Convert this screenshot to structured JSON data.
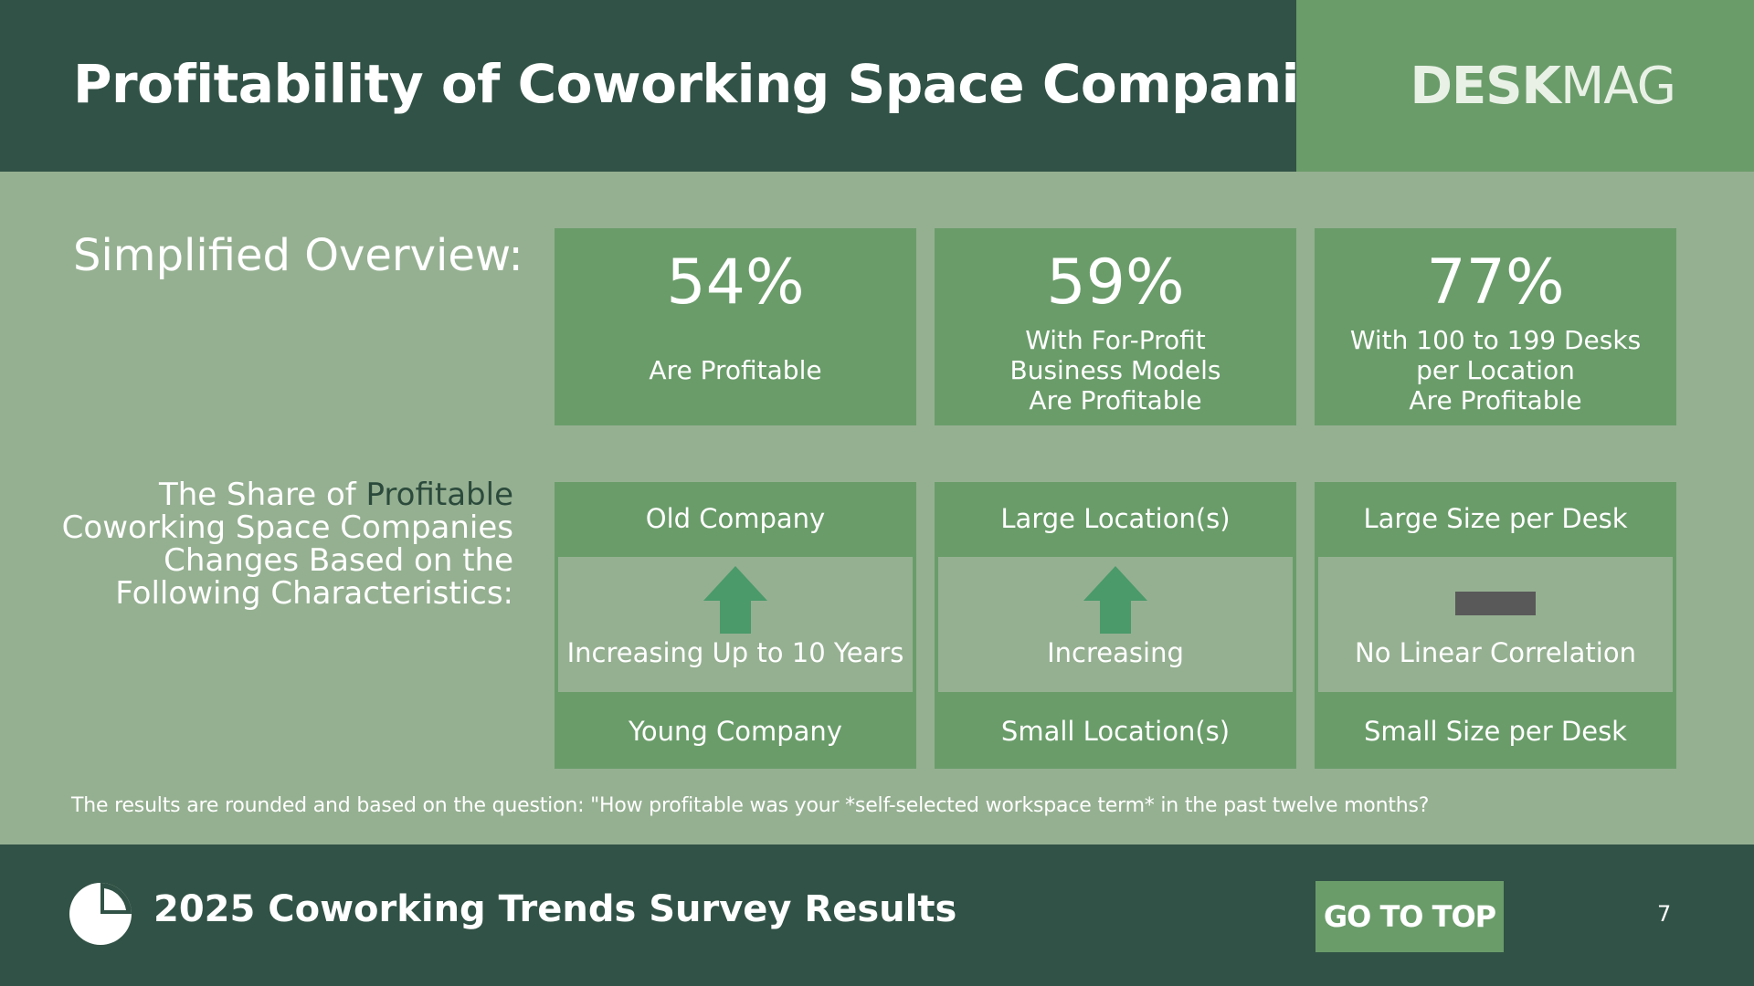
{
  "header": {
    "title": "Profitability of Coworking Space Companies",
    "logo_bold": "DESK",
    "logo_light": "MAG"
  },
  "overview": {
    "label": "Simplified Overview:",
    "stats": [
      {
        "value": "54%",
        "description": "Are Profitable"
      },
      {
        "value": "59%",
        "description": "With For-Profit\nBusiness Models\nAre Profitable"
      },
      {
        "value": "77%",
        "description": "With 100 to 199 Desks\nper Location\nAre Profitable"
      }
    ]
  },
  "characteristics": {
    "label_part1": "The Share of ",
    "label_highlight": "Profitable",
    "label_part2": "Coworking Space Companies Changes Based on the Following Characteristics:",
    "cards": [
      {
        "top": "Old Company",
        "trend": "Increasing Up to 10 Years",
        "bottom": "Young Company",
        "indicator": "arrow-up"
      },
      {
        "top": "Large Location(s)",
        "trend": "Increasing",
        "bottom": "Small Location(s)",
        "indicator": "arrow-up"
      },
      {
        "top": "Large Size per Desk",
        "trend": "No Linear Correlation",
        "bottom": "Small Size per Desk",
        "indicator": "flat-dash"
      }
    ]
  },
  "footnote": "The results are rounded and based on the question: \"How profitable was your *self-selected workspace term* in the past twelve months?",
  "footer": {
    "icon": "pie-chart-icon",
    "title": "2025 Coworking Trends Survey Results",
    "go_top_label": "GO TO TOP",
    "page_number": "7"
  },
  "colors": {
    "dark_green": "#315246",
    "mid_green": "#6a9c6a",
    "light_green": "#95b091",
    "arrow_green": "#4a9a6a",
    "dash_gray": "#595959",
    "highlight_text": "#2b4a3c"
  }
}
